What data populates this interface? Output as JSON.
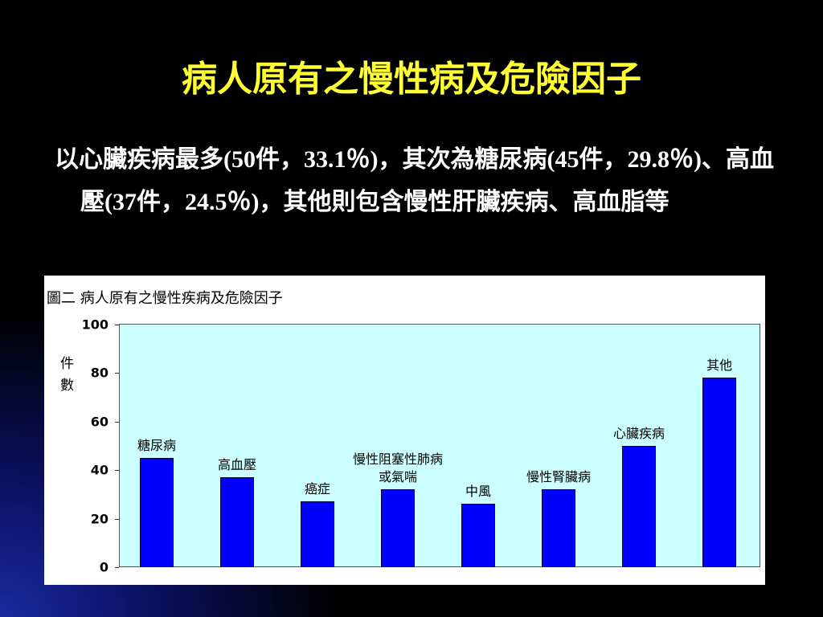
{
  "slide": {
    "title": "病人原有之慢性病及危險因子",
    "text": "以心臟疾病最多(50件，33.1％)，其次為糖尿病(45件，29.8％)、高血壓(37件，24.5％)，其他則包含慢性肝臟疾病、高血脂等"
  },
  "chart_data": {
    "type": "bar",
    "title": "圖二 病人原有之慢性疾病及危險因子",
    "y_label": "件數",
    "categories": [
      "糖尿病",
      "高血壓",
      "癌症",
      "慢性阻塞性肺病\n或氣喘",
      "中風",
      "慢性腎臟病",
      "心臟疾病",
      "其他"
    ],
    "values": [
      45,
      37,
      27,
      32,
      26,
      32,
      50,
      78
    ],
    "color": "#0000ff",
    "ylim": [
      0,
      100
    ],
    "yticks": [
      0,
      20,
      40,
      60,
      80,
      100
    ]
  }
}
